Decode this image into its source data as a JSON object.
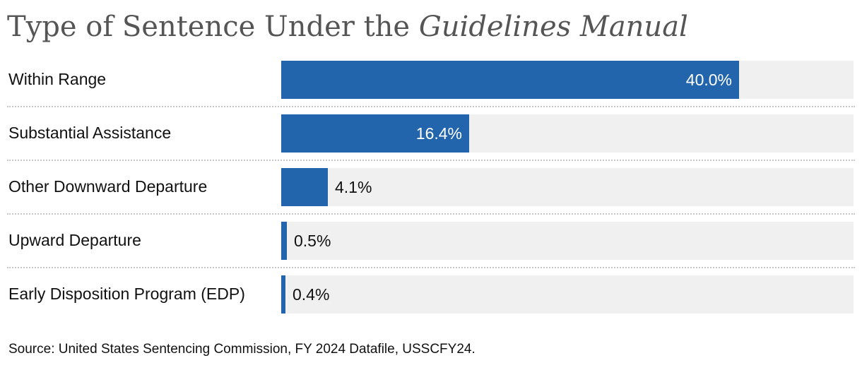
{
  "chart_data": {
    "type": "bar",
    "orientation": "horizontal",
    "title_plain": "Type of Sentence Under the ",
    "title_italic": "Guidelines Manual",
    "categories": [
      "Within Range",
      "Substantial Assistance",
      "Other Downward Departure",
      "Upward Departure",
      "Early Disposition Program (EDP)"
    ],
    "values": [
      40.0,
      16.4,
      4.1,
      0.5,
      0.4
    ],
    "value_labels": [
      "40.0%",
      "16.4%",
      "4.1%",
      "0.5%",
      "0.4%"
    ],
    "xlim": [
      0,
      50
    ],
    "bar_color": "#2265ad",
    "track_color": "#f0f0f0",
    "grid": false,
    "legend": "none"
  },
  "source": "Source: United States Sentencing Commission, FY 2024 Datafile, USSCFY24."
}
